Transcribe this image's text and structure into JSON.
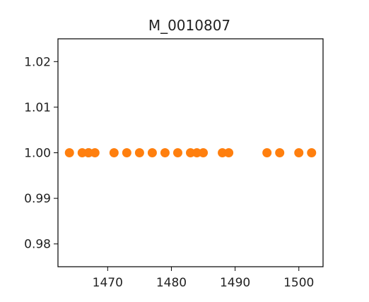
{
  "chart_data": {
    "type": "scatter",
    "title": "M_0010807",
    "xlabel": "",
    "ylabel": "",
    "xlim": [
      1462.2,
      1503.8
    ],
    "ylim": [
      0.975,
      1.025
    ],
    "x_ticks": [
      1470,
      1480,
      1490,
      1500
    ],
    "x_tick_labels": [
      "1470",
      "1480",
      "1490",
      "1500"
    ],
    "y_ticks": [
      0.98,
      0.99,
      1.0,
      1.01,
      1.02
    ],
    "y_tick_labels": [
      "0.98",
      "0.99",
      "1.00",
      "1.01",
      "1.02"
    ],
    "grid": false,
    "series": [
      {
        "color": "#1f77b4",
        "x": [
          1467
        ],
        "y": [
          1.0
        ]
      },
      {
        "color": "#ff7f0e",
        "x": [
          1464,
          1466,
          1467,
          1468,
          1471,
          1473,
          1475,
          1477,
          1479,
          1481,
          1483,
          1484,
          1485,
          1488,
          1489,
          1495,
          1497,
          1500,
          1502
        ],
        "y": [
          1.0,
          1.0,
          1.0,
          1.0,
          1.0,
          1.0,
          1.0,
          1.0,
          1.0,
          1.0,
          1.0,
          1.0,
          1.0,
          1.0,
          1.0,
          1.0,
          1.0,
          1.0,
          1.0
        ]
      }
    ]
  }
}
